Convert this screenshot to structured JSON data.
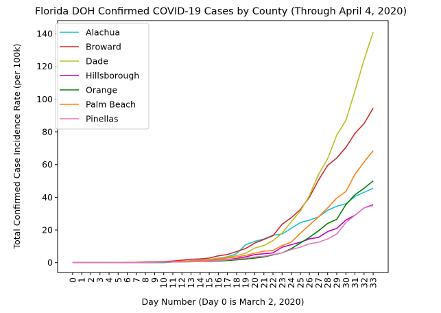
{
  "chart_data": {
    "type": "line",
    "title": "Florida DOH Confirmed COVID-19 Cases by County (Through April 4, 2020)",
    "xlabel": "Day Number (Day 0 is March 2, 2020)",
    "ylabel": "Total Confirmed Case Incidence Rate (per 100k)",
    "x": [
      0,
      1,
      2,
      3,
      4,
      5,
      6,
      7,
      8,
      9,
      10,
      11,
      12,
      13,
      14,
      15,
      16,
      17,
      18,
      19,
      20,
      21,
      22,
      23,
      24,
      25,
      26,
      27,
      28,
      29,
      30,
      31,
      32,
      33
    ],
    "xticks": [
      "0",
      "1",
      "2",
      "3",
      "4",
      "5",
      "6",
      "7",
      "8",
      "9",
      "10",
      "11",
      "12",
      "13",
      "14",
      "15",
      "16",
      "17",
      "18",
      "19",
      "20",
      "21",
      "22",
      "23",
      "24",
      "25",
      "26",
      "27",
      "28",
      "29",
      "30",
      "31",
      "32",
      "33"
    ],
    "yticks": [
      "0",
      "20",
      "40",
      "60",
      "80",
      "100",
      "120",
      "140"
    ],
    "ylim": [
      -6,
      148
    ],
    "grid": false,
    "legend_position": "top-left",
    "series": [
      {
        "name": "Alachua",
        "color": "#17becf",
        "values": [
          0,
          0,
          0,
          0,
          0,
          0,
          0,
          0,
          0,
          0,
          0,
          0.4,
          0.8,
          1.2,
          1.6,
          2.0,
          2.8,
          3.6,
          5.5,
          11.0,
          13.0,
          14.5,
          16.8,
          17.5,
          21.0,
          24.5,
          26.0,
          28.0,
          32.0,
          34.5,
          36.0,
          40.5,
          43.0,
          45.5
        ]
      },
      {
        "name": "Broward",
        "color": "#d62728",
        "values": [
          0,
          0,
          0,
          0,
          0,
          0.1,
          0.2,
          0.3,
          0.5,
          0.6,
          0.7,
          1.0,
          1.5,
          2.1,
          2.3,
          2.8,
          4.2,
          5.0,
          6.8,
          8.7,
          12.0,
          14.2,
          16.5,
          23.5,
          27.5,
          32.5,
          40.0,
          50.5,
          59.5,
          64.0,
          70.5,
          79.0,
          85.0,
          94.5
        ]
      },
      {
        "name": "Dade",
        "color": "#bcbd22",
        "values": [
          0,
          0,
          0,
          0,
          0,
          0,
          0,
          0.1,
          0.2,
          0.3,
          0.4,
          0.5,
          0.8,
          1.1,
          1.4,
          1.9,
          2.6,
          3.3,
          4.3,
          5.8,
          9.0,
          10.5,
          13.5,
          18.0,
          25.0,
          31.5,
          41.0,
          54.0,
          63.5,
          78.0,
          87.0,
          105.0,
          124.0,
          141.0
        ]
      },
      {
        "name": "Hillsborough",
        "color": "#bf00bf",
        "values": [
          0,
          0,
          0,
          0,
          0,
          0,
          0,
          0.1,
          0.2,
          0.3,
          0.4,
          0.5,
          0.6,
          0.8,
          1.0,
          1.2,
          1.5,
          1.9,
          2.6,
          3.6,
          4.9,
          5.5,
          6.0,
          9.5,
          11.0,
          12.5,
          14.5,
          15.5,
          19.0,
          21.0,
          26.0,
          29.0,
          33.5,
          35.5
        ]
      },
      {
        "name": "Orange",
        "color": "#008000",
        "values": [
          0,
          0,
          0,
          0,
          0,
          0,
          0,
          0,
          0.1,
          0.2,
          0.3,
          0.4,
          0.5,
          0.6,
          0.7,
          0.8,
          1.0,
          1.3,
          1.7,
          2.2,
          2.8,
          3.5,
          4.8,
          6.0,
          8.5,
          12.0,
          15.5,
          19.5,
          24.0,
          26.5,
          35.5,
          41.5,
          45.5,
          50.0
        ]
      },
      {
        "name": "Palm Beach",
        "color": "#ff7f0e",
        "values": [
          0,
          0,
          0,
          0,
          0,
          0,
          0.1,
          0.2,
          0.3,
          0.4,
          0.5,
          0.6,
          0.8,
          1.0,
          1.3,
          1.7,
          2.2,
          2.8,
          3.5,
          4.5,
          5.8,
          7.0,
          7.5,
          10.5,
          12.5,
          18.0,
          23.0,
          28.0,
          33.5,
          39.5,
          43.5,
          54.0,
          61.5,
          68.5
        ]
      },
      {
        "name": "Pinellas",
        "color": "#e377c2",
        "values": [
          0,
          0,
          0,
          0,
          0,
          0,
          0,
          0,
          0.1,
          0.2,
          0.3,
          0.4,
          0.5,
          0.6,
          0.8,
          1.0,
          1.3,
          1.7,
          2.2,
          2.8,
          3.5,
          4.0,
          5.0,
          6.0,
          8.0,
          9.5,
          11.5,
          12.5,
          14.5,
          17.5,
          24.5,
          29.0,
          33.5,
          35.0
        ]
      }
    ]
  }
}
